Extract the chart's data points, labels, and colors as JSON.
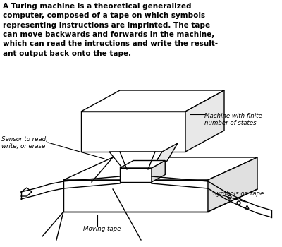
{
  "description_text": "A Turing machine is a theoretical generalized\ncomputer, composed of a tape on which symbols\nrepresenting instructions are imprinted. The tape\ncan move backwards and forwards in the machine,\nwhich can read the intructions and write the result-\nant output back onto the tape.",
  "label_sensor": "Sensor to read,\nwrite, or erase",
  "label_machine": "Machine with finite\nnumber of states",
  "label_symbols": "Symbols on tape",
  "label_tape": "Moving tape",
  "bg_color": "#ffffff",
  "line_color": "#000000",
  "text_color": "#000000",
  "figsize": [
    4.0,
    3.5
  ],
  "dpi": 100
}
